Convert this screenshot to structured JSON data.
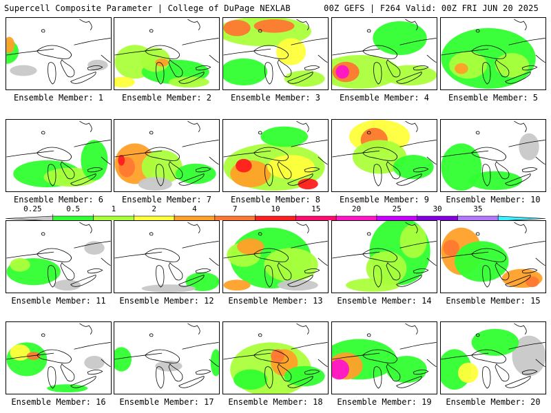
{
  "header": {
    "left_title": "Supercell Composite Parameter | College of DuPage NEXLAB",
    "right_title": "00Z GEFS | F264 Valid: 00Z FRI JUN 20 2025"
  },
  "panels": [
    {
      "caption": "Ensemble Member: 1"
    },
    {
      "caption": "Ensemble Member: 2"
    },
    {
      "caption": "Ensemble Member: 3"
    },
    {
      "caption": "Ensemble Member: 4"
    },
    {
      "caption": "Ensemble Member: 5"
    },
    {
      "caption": "Ensemble Member: 6"
    },
    {
      "caption": "Ensemble Member: 7"
    },
    {
      "caption": "Ensemble Member: 8"
    },
    {
      "caption": "Ensemble Member: 9"
    },
    {
      "caption": "Ensemble Member: 10"
    },
    {
      "caption": "Ensemble Member: 11"
    },
    {
      "caption": "Ensemble Member: 12"
    },
    {
      "caption": "Ensemble Member: 13"
    },
    {
      "caption": "Ensemble Member: 14"
    },
    {
      "caption": "Ensemble Member: 15"
    },
    {
      "caption": "Ensemble Member: 16"
    },
    {
      "caption": "Ensemble Member: 17"
    },
    {
      "caption": "Ensemble Member: 18"
    },
    {
      "caption": "Ensemble Member: 19"
    },
    {
      "caption": "Ensemble Member: 20"
    }
  ],
  "legend": {
    "labels": [
      "0.25",
      "0.5",
      "1",
      "2",
      "4",
      "7",
      "10",
      "15",
      "20",
      "25",
      "30",
      "35"
    ],
    "colors": [
      "#c8c8c8",
      "#32ff32",
      "#aaff3c",
      "#ffff3c",
      "#ffa028",
      "#ff7832",
      "#ff1e1e",
      "#ff0a6e",
      "#ff14c8",
      "#c800ff",
      "#8200dc",
      "#b478ff",
      "#3cf0ff"
    ]
  }
}
